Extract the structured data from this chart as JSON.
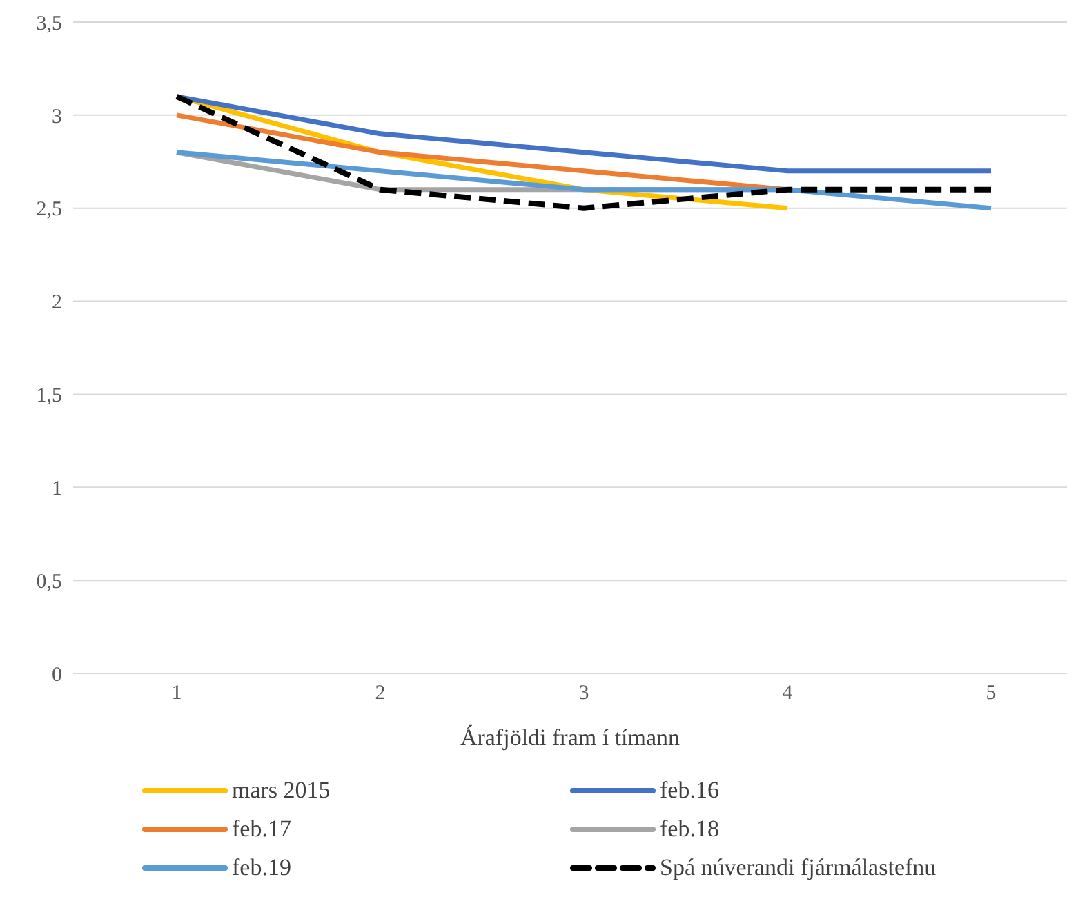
{
  "chart_data": {
    "type": "line",
    "xlabel": "Árafjöldi fram í tímann",
    "categories": [
      "1",
      "2",
      "3",
      "4",
      "5"
    ],
    "ylim": [
      0,
      3.5
    ],
    "yticks": [
      {
        "value": 0,
        "label": "0"
      },
      {
        "value": 0.5,
        "label": "0,5"
      },
      {
        "value": 1,
        "label": "1"
      },
      {
        "value": 1.5,
        "label": "1,5"
      },
      {
        "value": 2,
        "label": "2"
      },
      {
        "value": 2.5,
        "label": "2,5"
      },
      {
        "value": 3,
        "label": "3"
      },
      {
        "value": 3.5,
        "label": "3,5"
      }
    ],
    "grid": "y",
    "legend": "bottom",
    "marker": "none",
    "line_style": "solid",
    "series": [
      {
        "name": "mars 2015",
        "color": "#ffc000",
        "values": [
          3.1,
          2.8,
          2.6,
          2.5,
          null
        ]
      },
      {
        "name": "feb.16",
        "color": "#4472c4",
        "values": [
          3.1,
          2.9,
          2.8,
          2.7,
          2.7
        ]
      },
      {
        "name": "feb.17",
        "color": "#ed7d31",
        "values": [
          3.0,
          2.8,
          2.7,
          2.6,
          null
        ]
      },
      {
        "name": "feb.18",
        "color": "#a5a5a5",
        "values": [
          2.8,
          2.6,
          2.6,
          2.6,
          null
        ]
      },
      {
        "name": "feb.19",
        "color": "#5b9bd5",
        "values": [
          2.8,
          2.7,
          2.6,
          2.6,
          2.5
        ]
      },
      {
        "name": "Spá núverandi fjármálastefnu",
        "color": "#000000",
        "line_style": "dashed",
        "values": [
          3.1,
          2.6,
          2.5,
          2.6,
          2.6
        ]
      }
    ]
  }
}
